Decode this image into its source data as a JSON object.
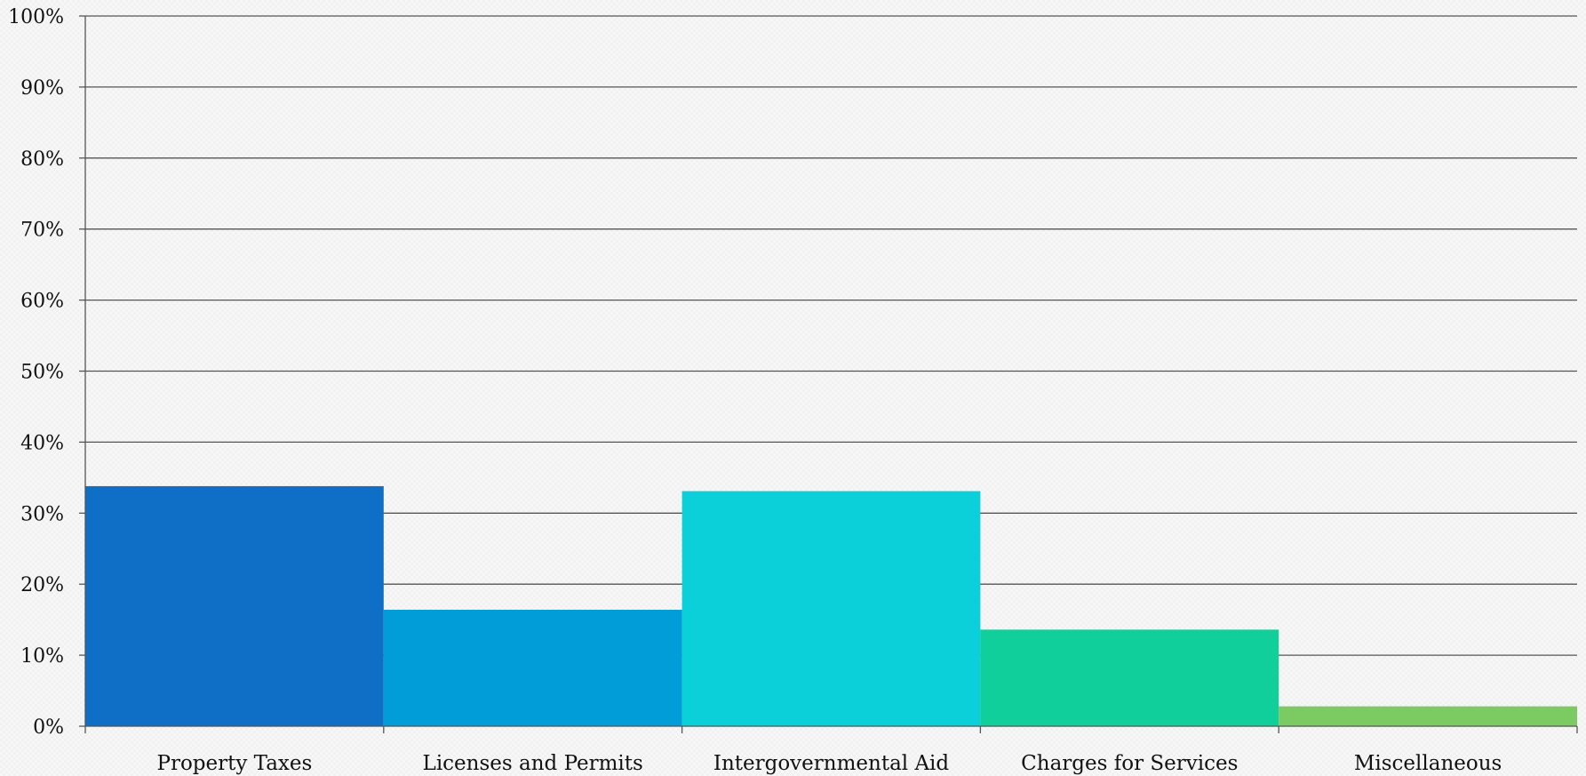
{
  "chart_data": {
    "type": "bar",
    "categories": [
      "Property Taxes",
      "Licenses and Permits",
      "Intergovernmental Aid",
      "Charges for Services",
      "Miscellaneous"
    ],
    "values": [
      33.8,
      16.4,
      33.1,
      13.6,
      2.8
    ],
    "colors": [
      "#0f6fc6",
      "#009dd9",
      "#0bd0d9",
      "#10cf9b",
      "#7cca62"
    ],
    "y_ticks": [
      "0%",
      "10%",
      "20%",
      "30%",
      "40%",
      "50%",
      "60%",
      "70%",
      "80%",
      "90%",
      "100%"
    ],
    "ylim": [
      0,
      100
    ],
    "grid": true,
    "legend": "none",
    "title": "",
    "xlabel": "",
    "ylabel": ""
  }
}
